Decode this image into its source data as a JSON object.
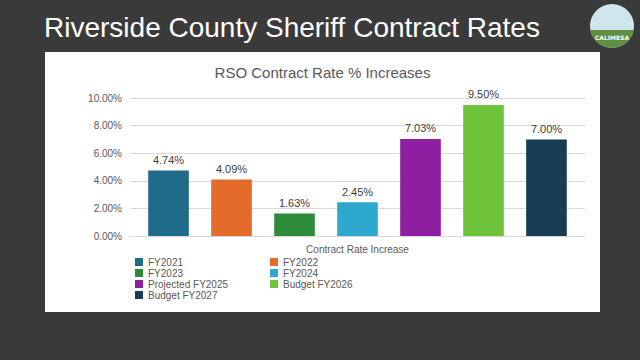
{
  "slide": {
    "title": "Riverside County Sheriff Contract Rates",
    "logo_text": "CALIMESA"
  },
  "chart_data": {
    "type": "bar",
    "title": "RSO Contract Rate % Increases",
    "categories": [
      "Contract Rate Increase"
    ],
    "series": [
      {
        "name": "FY2021",
        "color": "#1f6b8a",
        "values": [
          4.74
        ],
        "value_labels": [
          "4.74%"
        ]
      },
      {
        "name": "FY2022",
        "color": "#e36c2a",
        "values": [
          4.09
        ],
        "value_labels": [
          "4.09%"
        ]
      },
      {
        "name": "FY2023",
        "color": "#2e8b3a",
        "values": [
          1.63
        ],
        "value_labels": [
          "1.63%"
        ]
      },
      {
        "name": "FY2024",
        "color": "#2fa8d0",
        "values": [
          2.45
        ],
        "value_labels": [
          "2.45%"
        ]
      },
      {
        "name": "Projected FY2025",
        "color": "#8e1fa0",
        "values": [
          7.03
        ],
        "value_labels": [
          "7.03%"
        ]
      },
      {
        "name": "Budget FY2026",
        "color": "#6fc43b",
        "values": [
          9.5
        ],
        "value_labels": [
          "9.50%"
        ]
      },
      {
        "name": "Budget FY2027",
        "color": "#173e52",
        "values": [
          7.0
        ],
        "value_labels": [
          "7.00%"
        ]
      }
    ],
    "ylim": [
      0,
      10
    ],
    "yticks": [
      {
        "value": 0,
        "label": "0.00%"
      },
      {
        "value": 2,
        "label": "2.00%"
      },
      {
        "value": 4,
        "label": "4.00%"
      },
      {
        "value": 6,
        "label": "6.00%"
      },
      {
        "value": 8,
        "label": "8.00%"
      },
      {
        "value": 10,
        "label": "10.00%"
      }
    ],
    "grid": true,
    "legend": "bottom",
    "data_labels": true
  }
}
